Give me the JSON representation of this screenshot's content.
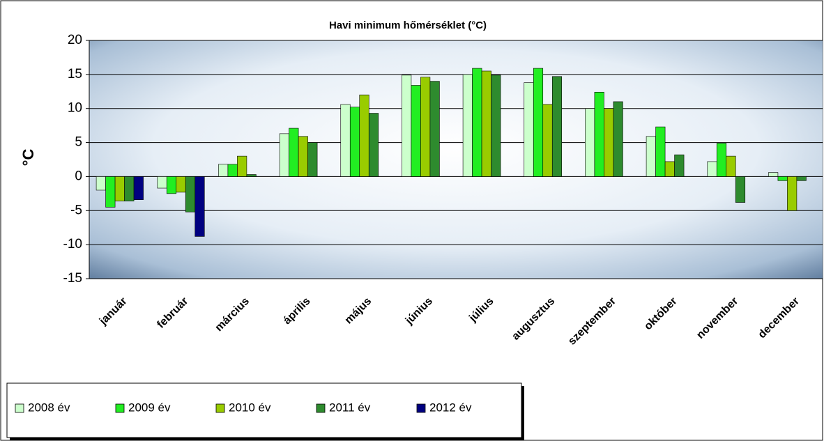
{
  "chart_data": {
    "type": "bar",
    "title": "Havi minimum  hőmérséklet (°C)",
    "y_label": "°C",
    "categories": [
      "január",
      "február",
      "március",
      "április",
      "május",
      "június",
      "július",
      "augusztus",
      "szeptember",
      "október",
      "november",
      "december"
    ],
    "series": [
      {
        "name": "2008 év",
        "color": "#ccffcc",
        "values": [
          -2,
          -1.7,
          1.8,
          6.3,
          10.6,
          14.9,
          15,
          13.8,
          10,
          5.9,
          2.2,
          0.6
        ]
      },
      {
        "name": "2009 év",
        "color": "#22ee22",
        "values": [
          -4.5,
          -2.5,
          1.8,
          7.1,
          10.2,
          13.4,
          15.9,
          15.9,
          12.4,
          7.3,
          4.9,
          -0.6
        ]
      },
      {
        "name": "2010 év",
        "color": "#99cc00",
        "values": [
          -3.6,
          -2.3,
          3,
          5.9,
          12,
          14.6,
          15.5,
          10.6,
          10,
          2.2,
          3,
          -5
        ]
      },
      {
        "name": "2011 év",
        "color": "#2e8b2e",
        "values": [
          -3.6,
          -5.2,
          0.3,
          5,
          9.3,
          14,
          14.9,
          14.7,
          11,
          3.2,
          -3.8,
          -0.6
        ]
      },
      {
        "name": "2012 év",
        "color": "#000080",
        "values": [
          -3.4,
          -8.8,
          null,
          null,
          null,
          null,
          null,
          null,
          null,
          null,
          null,
          null
        ]
      }
    ],
    "ylim": [
      -15,
      20
    ],
    "yticks": [
      -15,
      -10,
      -5,
      0,
      5,
      10,
      15,
      20
    ],
    "grid": true,
    "legend": "bottom-left"
  }
}
